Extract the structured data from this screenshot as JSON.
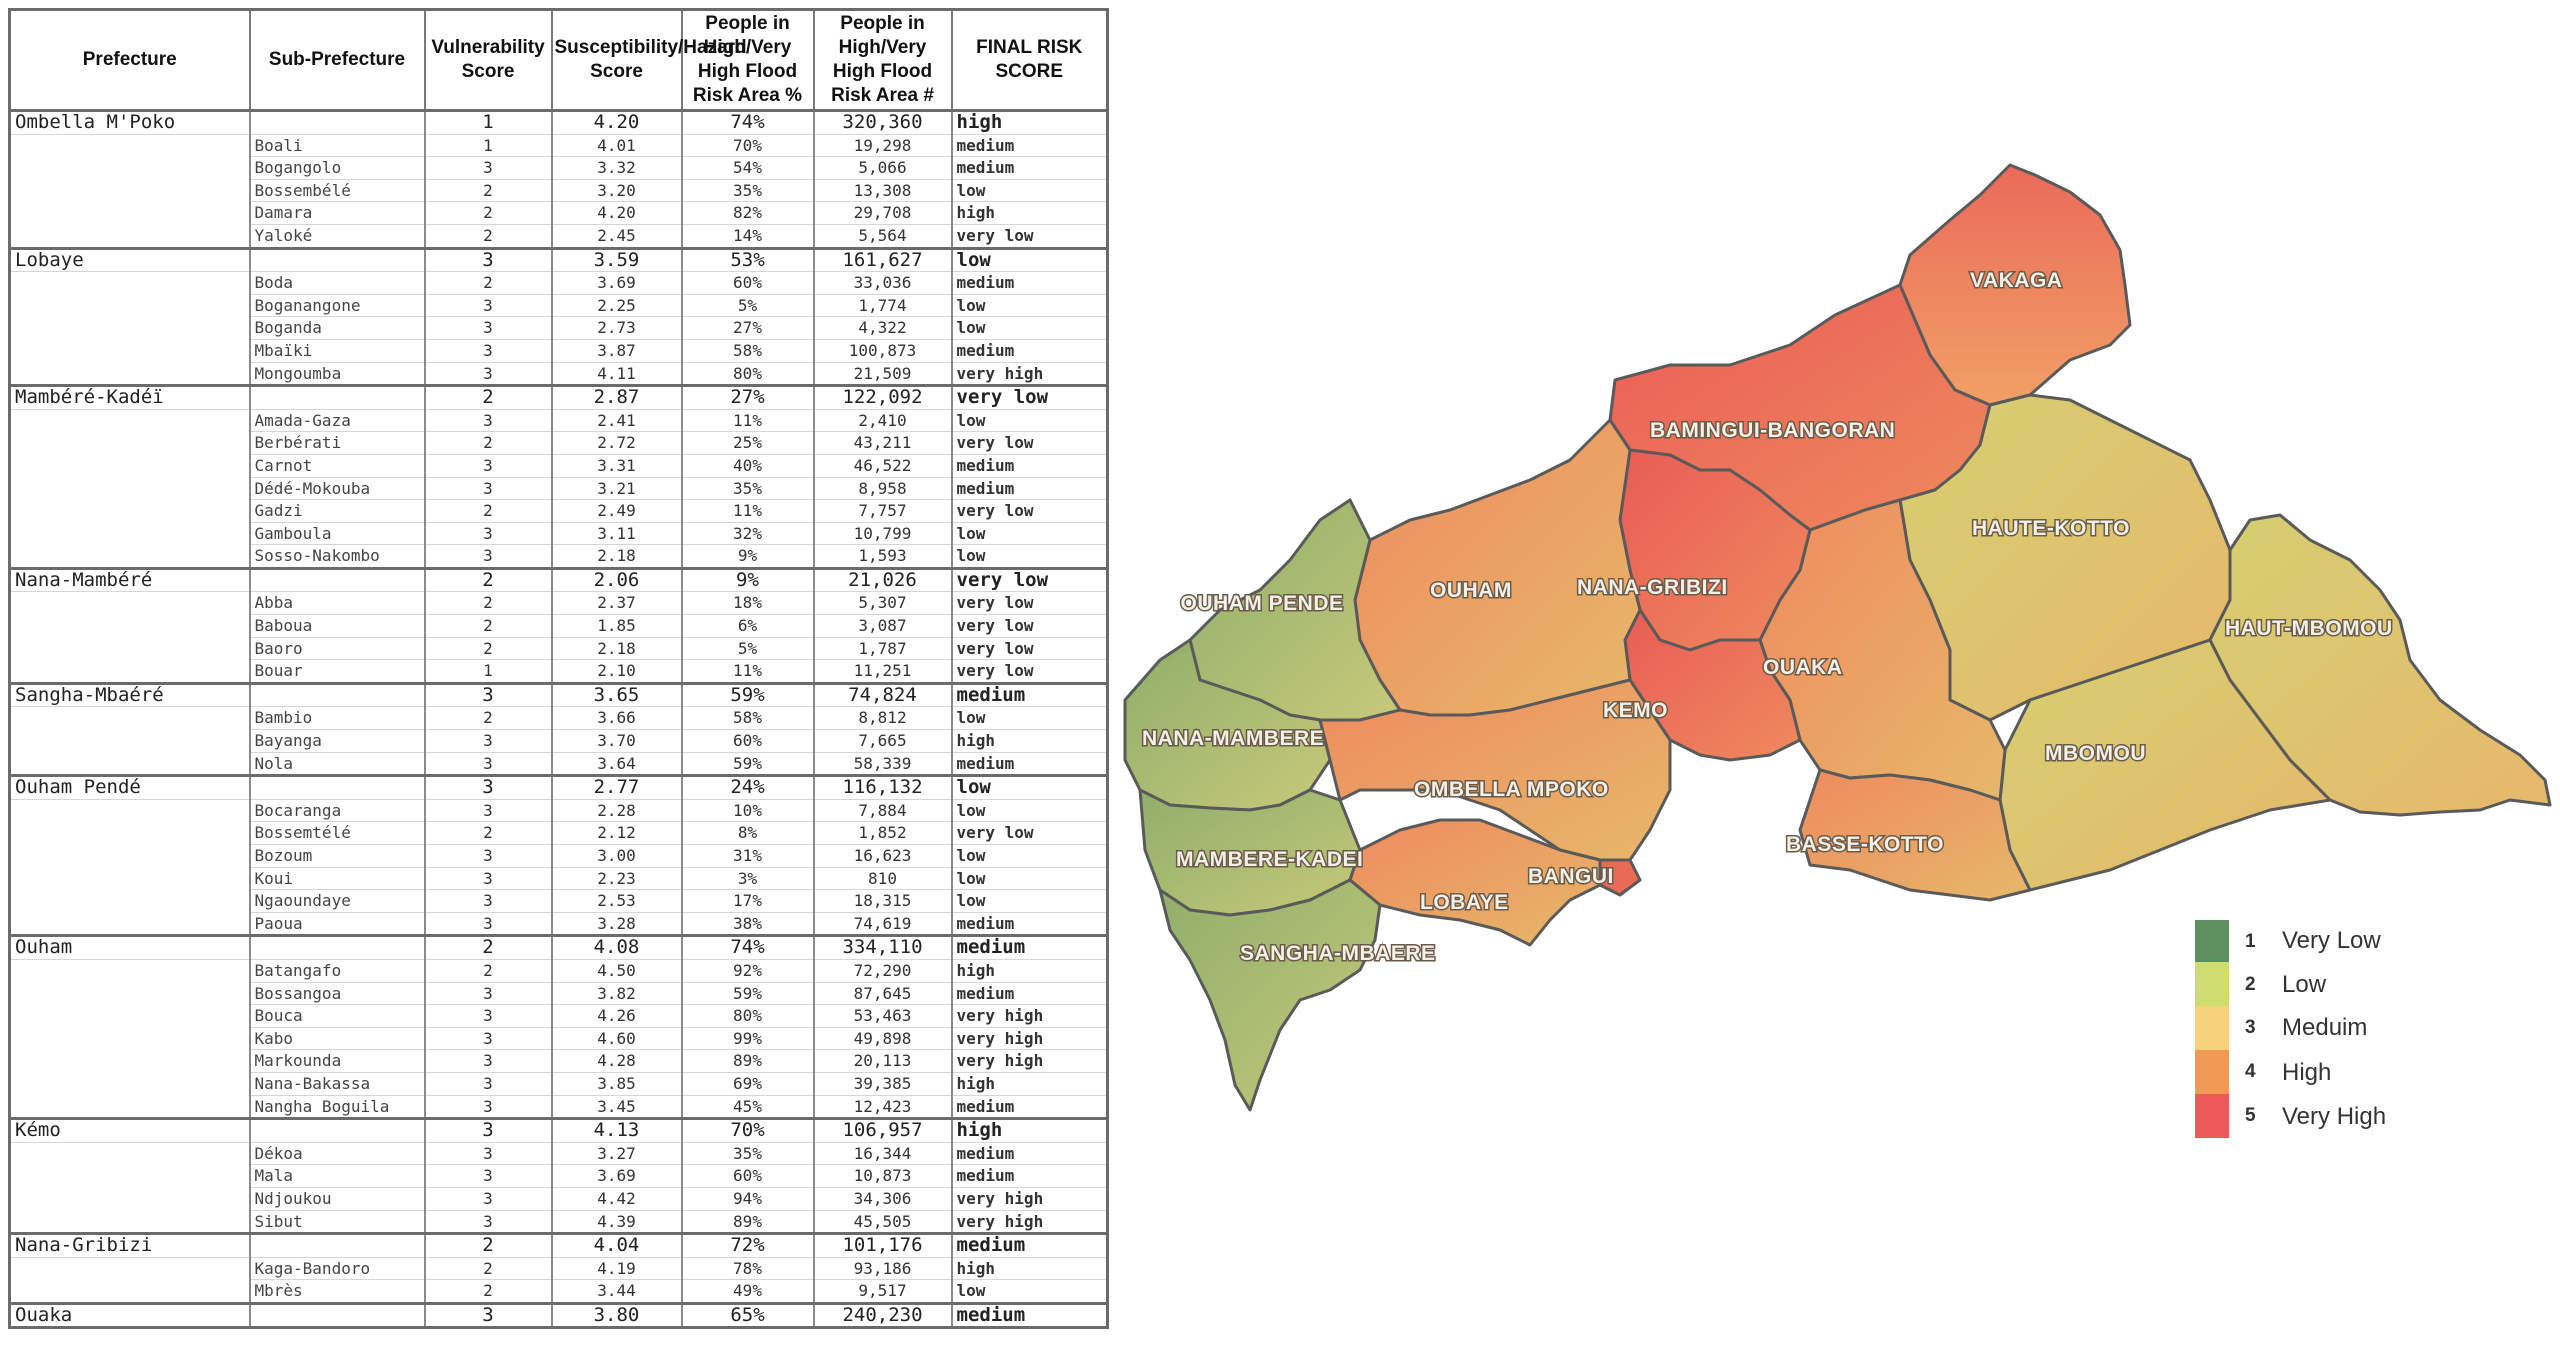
{
  "table": {
    "headers": [
      "Prefecture",
      "Sub-Prefecture",
      "Vulnerability Score",
      "Susceptibility/Hazard Score",
      "People in High/Very High Flood Risk Area %",
      "People in High/Very High Flood Risk Area #",
      "FINAL RISK SCORE"
    ],
    "rows": [
      {
        "type": "prefecture",
        "name": "Ombella M'Poko",
        "vuln": "1",
        "hazard": "4.20",
        "pct": "74%",
        "people": "320,360",
        "risk": "high"
      },
      {
        "type": "sub",
        "name": "Boali",
        "vuln": "1",
        "hazard": "4.01",
        "pct": "70%",
        "people": "19,298",
        "risk": "medium"
      },
      {
        "type": "sub",
        "name": "Bogangolo",
        "vuln": "3",
        "hazard": "3.32",
        "pct": "54%",
        "people": "5,066",
        "risk": "medium"
      },
      {
        "type": "sub",
        "name": "Bossembélé",
        "vuln": "2",
        "hazard": "3.20",
        "pct": "35%",
        "people": "13,308",
        "risk": "low"
      },
      {
        "type": "sub",
        "name": "Damara",
        "vuln": "2",
        "hazard": "4.20",
        "pct": "82%",
        "people": "29,708",
        "risk": "high"
      },
      {
        "type": "sub",
        "name": "Yaloké",
        "vuln": "2",
        "hazard": "2.45",
        "pct": "14%",
        "people": "5,564",
        "risk": "very low"
      },
      {
        "type": "prefecture",
        "name": "Lobaye",
        "vuln": "3",
        "hazard": "3.59",
        "pct": "53%",
        "people": "161,627",
        "risk": "low"
      },
      {
        "type": "sub",
        "name": "Boda",
        "vuln": "2",
        "hazard": "3.69",
        "pct": "60%",
        "people": "33,036",
        "risk": "medium"
      },
      {
        "type": "sub",
        "name": "Boganangone",
        "vuln": "3",
        "hazard": "2.25",
        "pct": "5%",
        "people": "1,774",
        "risk": "low"
      },
      {
        "type": "sub",
        "name": "Boganda",
        "vuln": "3",
        "hazard": "2.73",
        "pct": "27%",
        "people": "4,322",
        "risk": "low"
      },
      {
        "type": "sub",
        "name": "Mbaïki",
        "vuln": "3",
        "hazard": "3.87",
        "pct": "58%",
        "people": "100,873",
        "risk": "medium"
      },
      {
        "type": "sub",
        "name": "Mongoumba",
        "vuln": "3",
        "hazard": "4.11",
        "pct": "80%",
        "people": "21,509",
        "risk": "very high"
      },
      {
        "type": "prefecture",
        "name": "Mambéré-Kadéï",
        "vuln": "2",
        "hazard": "2.87",
        "pct": "27%",
        "people": "122,092",
        "risk": "very low"
      },
      {
        "type": "sub",
        "name": "Amada-Gaza",
        "vuln": "3",
        "hazard": "2.41",
        "pct": "11%",
        "people": "2,410",
        "risk": "low"
      },
      {
        "type": "sub",
        "name": "Berbérati",
        "vuln": "2",
        "hazard": "2.72",
        "pct": "25%",
        "people": "43,211",
        "risk": "very low"
      },
      {
        "type": "sub",
        "name": "Carnot",
        "vuln": "3",
        "hazard": "3.31",
        "pct": "40%",
        "people": "46,522",
        "risk": "medium"
      },
      {
        "type": "sub",
        "name": "Dédé-Mokouba",
        "vuln": "3",
        "hazard": "3.21",
        "pct": "35%",
        "people": "8,958",
        "risk": "medium"
      },
      {
        "type": "sub",
        "name": "Gadzi",
        "vuln": "2",
        "hazard": "2.49",
        "pct": "11%",
        "people": "7,757",
        "risk": "very low"
      },
      {
        "type": "sub",
        "name": "Gamboula",
        "vuln": "3",
        "hazard": "3.11",
        "pct": "32%",
        "people": "10,799",
        "risk": "low"
      },
      {
        "type": "sub",
        "name": "Sosso-Nakombo",
        "vuln": "3",
        "hazard": "2.18",
        "pct": "9%",
        "people": "1,593",
        "risk": "low"
      },
      {
        "type": "prefecture",
        "name": "Nana-Mambéré",
        "vuln": "2",
        "hazard": "2.06",
        "pct": "9%",
        "people": "21,026",
        "risk": "very low"
      },
      {
        "type": "sub",
        "name": "Abba",
        "vuln": "2",
        "hazard": "2.37",
        "pct": "18%",
        "people": "5,307",
        "risk": "very low"
      },
      {
        "type": "sub",
        "name": "Baboua",
        "vuln": "2",
        "hazard": "1.85",
        "pct": "6%",
        "people": "3,087",
        "risk": "very low"
      },
      {
        "type": "sub",
        "name": "Baoro",
        "vuln": "2",
        "hazard": "2.18",
        "pct": "5%",
        "people": "1,787",
        "risk": "very low"
      },
      {
        "type": "sub",
        "name": "Bouar",
        "vuln": "1",
        "hazard": "2.10",
        "pct": "11%",
        "people": "11,251",
        "risk": "very low"
      },
      {
        "type": "prefecture",
        "name": "Sangha-Mbaéré",
        "vuln": "3",
        "hazard": "3.65",
        "pct": "59%",
        "people": "74,824",
        "risk": "medium"
      },
      {
        "type": "sub",
        "name": "Bambio",
        "vuln": "2",
        "hazard": "3.66",
        "pct": "58%",
        "people": "8,812",
        "risk": "low"
      },
      {
        "type": "sub",
        "name": "Bayanga",
        "vuln": "3",
        "hazard": "3.70",
        "pct": "60%",
        "people": "7,665",
        "risk": "high"
      },
      {
        "type": "sub",
        "name": "Nola",
        "vuln": "3",
        "hazard": "3.64",
        "pct": "59%",
        "people": "58,339",
        "risk": "medium"
      },
      {
        "type": "prefecture",
        "name": "Ouham Pendé",
        "vuln": "3",
        "hazard": "2.77",
        "pct": "24%",
        "people": "116,132",
        "risk": "low"
      },
      {
        "type": "sub",
        "name": "Bocaranga",
        "vuln": "3",
        "hazard": "2.28",
        "pct": "10%",
        "people": "7,884",
        "risk": "low"
      },
      {
        "type": "sub",
        "name": "Bossemtélé",
        "vuln": "2",
        "hazard": "2.12",
        "pct": "8%",
        "people": "1,852",
        "risk": "very low"
      },
      {
        "type": "sub",
        "name": "Bozoum",
        "vuln": "3",
        "hazard": "3.00",
        "pct": "31%",
        "people": "16,623",
        "risk": "low"
      },
      {
        "type": "sub",
        "name": "Koui",
        "vuln": "3",
        "hazard": "2.23",
        "pct": "3%",
        "people": "810",
        "risk": "low"
      },
      {
        "type": "sub",
        "name": "Ngaoundaye",
        "vuln": "3",
        "hazard": "2.53",
        "pct": "17%",
        "people": "18,315",
        "risk": "low"
      },
      {
        "type": "sub",
        "name": "Paoua",
        "vuln": "3",
        "hazard": "3.28",
        "pct": "38%",
        "people": "74,619",
        "risk": "medium"
      },
      {
        "type": "prefecture",
        "name": "Ouham",
        "vuln": "2",
        "hazard": "4.08",
        "pct": "74%",
        "people": "334,110",
        "risk": "medium"
      },
      {
        "type": "sub",
        "name": "Batangafo",
        "vuln": "2",
        "hazard": "4.50",
        "pct": "92%",
        "people": "72,290",
        "risk": "high"
      },
      {
        "type": "sub",
        "name": "Bossangoa",
        "vuln": "3",
        "hazard": "3.82",
        "pct": "59%",
        "people": "87,645",
        "risk": "medium"
      },
      {
        "type": "sub",
        "name": "Bouca",
        "vuln": "3",
        "hazard": "4.26",
        "pct": "80%",
        "people": "53,463",
        "risk": "very high"
      },
      {
        "type": "sub",
        "name": "Kabo",
        "vuln": "3",
        "hazard": "4.60",
        "pct": "99%",
        "people": "49,898",
        "risk": "very high"
      },
      {
        "type": "sub",
        "name": "Markounda",
        "vuln": "3",
        "hazard": "4.28",
        "pct": "89%",
        "people": "20,113",
        "risk": "very high"
      },
      {
        "type": "sub",
        "name": "Nana-Bakassa",
        "vuln": "3",
        "hazard": "3.85",
        "pct": "69%",
        "people": "39,385",
        "risk": "high"
      },
      {
        "type": "sub",
        "name": "Nangha Boguila",
        "vuln": "3",
        "hazard": "3.45",
        "pct": "45%",
        "people": "12,423",
        "risk": "medium"
      },
      {
        "type": "prefecture",
        "name": "Kémo",
        "vuln": "3",
        "hazard": "4.13",
        "pct": "70%",
        "people": "106,957",
        "risk": "high"
      },
      {
        "type": "sub",
        "name": "Dékoa",
        "vuln": "3",
        "hazard": "3.27",
        "pct": "35%",
        "people": "16,344",
        "risk": "medium"
      },
      {
        "type": "sub",
        "name": "Mala",
        "vuln": "3",
        "hazard": "3.69",
        "pct": "60%",
        "people": "10,873",
        "risk": "medium"
      },
      {
        "type": "sub",
        "name": "Ndjoukou",
        "vuln": "3",
        "hazard": "4.42",
        "pct": "94%",
        "people": "34,306",
        "risk": "very high"
      },
      {
        "type": "sub",
        "name": "Sibut",
        "vuln": "3",
        "hazard": "4.39",
        "pct": "89%",
        "people": "45,505",
        "risk": "very high"
      },
      {
        "type": "prefecture",
        "name": "Nana-Gribizi",
        "vuln": "2",
        "hazard": "4.04",
        "pct": "72%",
        "people": "101,176",
        "risk": "medium"
      },
      {
        "type": "sub",
        "name": "Kaga-Bandoro",
        "vuln": "2",
        "hazard": "4.19",
        "pct": "78%",
        "people": "93,186",
        "risk": "high"
      },
      {
        "type": "sub",
        "name": "Mbrès",
        "vuln": "2",
        "hazard": "3.44",
        "pct": "49%",
        "people": "9,517",
        "risk": "low"
      },
      {
        "type": "prefecture",
        "name": "Ouaka",
        "vuln": "3",
        "hazard": "3.80",
        "pct": "65%",
        "people": "240,230",
        "risk": "medium"
      }
    ]
  },
  "risk_colors": {
    "very low": "#2f8f2a",
    "low": "#8fc43c",
    "medium": "#d79a16",
    "high": "#d2401c",
    "very high": "#e01c1c"
  },
  "map": {
    "region_labels": [
      "VAKAGA",
      "BAMINGUI-BANGORAN",
      "HAUTE-KOTTO",
      "OUHAM PENDE",
      "OUHAM",
      "NANA-GRIBIZI",
      "HAUT-MBOMOU",
      "OUAKA",
      "KEMO",
      "NANA-MAMBERE",
      "MBOMOU",
      "OMBELLA MPOKO",
      "BASSE-KOTTO",
      "BANGUI",
      "MAMBERE-KADEI",
      "LOBAYE",
      "SANGHA-MBAERE"
    ],
    "legend": [
      {
        "value": "1",
        "label": "Very Low",
        "color": "#5e8f5e"
      },
      {
        "value": "2",
        "label": "Low",
        "color": "#cfdc6e"
      },
      {
        "value": "3",
        "label": "Meduim",
        "color": "#f7d27a"
      },
      {
        "value": "4",
        "label": "High",
        "color": "#f29a55"
      },
      {
        "value": "5",
        "label": "Very High",
        "color": "#ec5a5a"
      }
    ]
  }
}
